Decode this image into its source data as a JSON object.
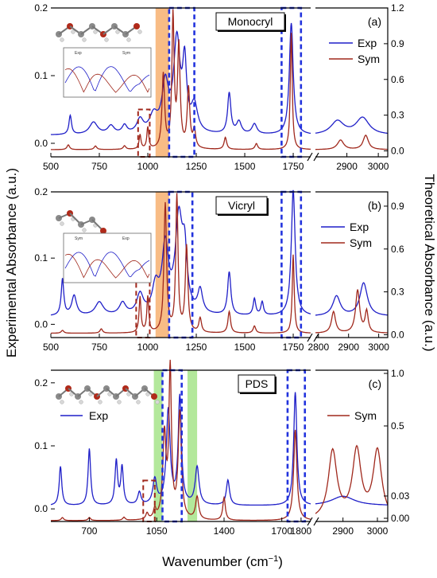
{
  "figure": {
    "y_left_label": "Experimental Absorbance (a.u.)",
    "y_right_label": "Theoretical Absorbance (a.u.)",
    "x_label_prefix": "Wavenumber (cm",
    "x_label_sup": "−1",
    "x_label_suffix": ")"
  },
  "chart_data": [
    {
      "type": "line",
      "panel_label": "(a)",
      "title": "Monocryl",
      "legend": [
        {
          "name": "Exp",
          "color": "#1f1fc8"
        },
        {
          "name": "Sym",
          "color": "#a0281c"
        }
      ],
      "x_left_ticks": [
        "500",
        "750",
        "1000",
        "1250",
        "1500",
        "1750"
      ],
      "x_right_ticks": [
        "2900",
        "3000"
      ],
      "y_left_ticks": [
        "0.0",
        "0.1",
        "0.2"
      ],
      "y_right_ticks": [
        "0.0",
        "0.3",
        "0.6",
        "0.9",
        "1.2"
      ],
      "x_left_range": [
        500,
        1840
      ],
      "x_right_range": [
        2800,
        3030
      ],
      "y_left_range": [
        -0.02,
        0.2
      ],
      "y_right_range": [
        -0.05,
        1.2
      ],
      "series": [
        {
          "name": "Exp",
          "color": "#1f1fc8",
          "axis": "left",
          "baseline": 0.012,
          "peaks": [
            [
              600,
              0.028,
              8
            ],
            [
              720,
              0.018,
              25
            ],
            [
              810,
              0.012,
              20
            ],
            [
              880,
              0.012,
              15
            ],
            [
              960,
              0.02,
              20
            ],
            [
              1030,
              0.025,
              25
            ],
            [
              1090,
              0.07,
              20
            ],
            [
              1150,
              0.135,
              20
            ],
            [
              1190,
              0.095,
              12
            ],
            [
              1240,
              0.04,
              20
            ],
            [
              1420,
              0.06,
              10
            ],
            [
              1470,
              0.018,
              15
            ],
            [
              1550,
              0.015,
              15
            ],
            [
              1740,
              0.165,
              12
            ],
            [
              2870,
              0.02,
              25
            ],
            [
              2950,
              0.025,
              25
            ]
          ]
        },
        {
          "name": "Sym",
          "color": "#a0281c",
          "axis": "right",
          "baseline": 0.01,
          "peaks": [
            [
              590,
              0.04,
              8
            ],
            [
              730,
              0.03,
              8
            ],
            [
              880,
              0.03,
              8
            ],
            [
              960,
              0.12,
              6
            ],
            [
              1000,
              0.18,
              6
            ],
            [
              1080,
              0.62,
              8
            ],
            [
              1130,
              1.1,
              7
            ],
            [
              1160,
              0.85,
              8
            ],
            [
              1210,
              0.5,
              8
            ],
            [
              1240,
              0.15,
              8
            ],
            [
              1400,
              0.1,
              8
            ],
            [
              1560,
              0.05,
              8
            ],
            [
              1740,
              0.98,
              6
            ],
            [
              2880,
              0.08,
              12
            ],
            [
              2960,
              0.12,
              10
            ]
          ]
        }
      ],
      "highlight_bands": [
        {
          "from": 1040,
          "to": 1110,
          "color": "#f6a65c"
        }
      ],
      "dashed_boxes": [
        {
          "from": 1110,
          "to": 1240,
          "color": "#2233dd",
          "full": true
        },
        {
          "from": 1690,
          "to": 1790,
          "color": "#2233dd",
          "full": true
        },
        {
          "from": 950,
          "to": 1010,
          "color": "#a0281c",
          "full": false,
          "top": 0.05
        }
      ],
      "inset_legend": [
        "Exp",
        "Sym"
      ]
    },
    {
      "type": "line",
      "panel_label": "(b)",
      "title": "Vicryl",
      "legend": [
        {
          "name": "Exp",
          "color": "#1f1fc8"
        },
        {
          "name": "Sym",
          "color": "#a0281c"
        }
      ],
      "x_left_ticks": [
        "500",
        "750",
        "1000",
        "1250",
        "1500",
        "1750"
      ],
      "x_right_ticks": [
        "2800",
        "2900",
        "3000"
      ],
      "y_left_ticks": [
        "0.0",
        "0.1",
        "0.2"
      ],
      "y_right_ticks": [
        "0.0",
        "0.3",
        "0.6",
        "0.9"
      ],
      "x_left_range": [
        500,
        1840
      ],
      "x_right_range": [
        2790,
        3030
      ],
      "y_left_range": [
        -0.02,
        0.2
      ],
      "y_right_range": [
        -0.02,
        1.0
      ],
      "series": [
        {
          "name": "Exp",
          "color": "#1f1fc8",
          "axis": "left",
          "baseline": 0.012,
          "peaks": [
            [
              560,
              0.055,
              8
            ],
            [
              620,
              0.03,
              15
            ],
            [
              750,
              0.02,
              25
            ],
            [
              870,
              0.018,
              20
            ],
            [
              960,
              0.03,
              20
            ],
            [
              1040,
              0.04,
              20
            ],
            [
              1090,
              0.1,
              20
            ],
            [
              1160,
              0.14,
              22
            ],
            [
              1190,
              0.08,
              15
            ],
            [
              1270,
              0.035,
              15
            ],
            [
              1420,
              0.065,
              10
            ],
            [
              1550,
              0.025,
              8
            ],
            [
              1590,
              0.02,
              8
            ],
            [
              1750,
              0.19,
              12
            ],
            [
              2860,
              0.03,
              15
            ],
            [
              2950,
              0.05,
              15
            ]
          ]
        },
        {
          "name": "Sym",
          "color": "#a0281c",
          "axis": "right",
          "baseline": 0.01,
          "peaks": [
            [
              560,
              0.02,
              8
            ],
            [
              760,
              0.03,
              8
            ],
            [
              960,
              0.25,
              6
            ],
            [
              1000,
              0.25,
              6
            ],
            [
              1090,
              0.9,
              8
            ],
            [
              1150,
              0.95,
              7
            ],
            [
              1200,
              0.6,
              8
            ],
            [
              1270,
              0.1,
              8
            ],
            [
              1420,
              0.15,
              8
            ],
            [
              1550,
              0.05,
              8
            ],
            [
              1750,
              0.55,
              6
            ],
            [
              2850,
              0.15,
              8
            ],
            [
              2930,
              0.3,
              8
            ],
            [
              2960,
              0.15,
              6
            ]
          ]
        }
      ],
      "highlight_bands": [
        {
          "from": 1040,
          "to": 1110,
          "color": "#f6a65c"
        }
      ],
      "dashed_boxes": [
        {
          "from": 1110,
          "to": 1230,
          "color": "#2233dd",
          "full": true
        },
        {
          "from": 1690,
          "to": 1790,
          "color": "#2233dd",
          "full": true
        },
        {
          "from": 940,
          "to": 1010,
          "color": "#a0281c",
          "full": false,
          "top": 0.08
        }
      ],
      "inset_legend": [
        "Sym",
        "Exp"
      ]
    },
    {
      "type": "line",
      "panel_label": "(c)",
      "title": "PDS",
      "legend": [
        {
          "name": "Exp",
          "color": "#1f1fc8"
        },
        {
          "name": "Sym",
          "color": "#a0281c"
        }
      ],
      "x_left_ticks": [
        "700",
        "1050",
        "1400",
        "1700",
        "1800"
      ],
      "x_right_ticks": [
        "2900",
        "3000"
      ],
      "y_left_ticks": [
        "0.0",
        "0.1",
        "0.2"
      ],
      "y_right_ticks": [
        "0.00",
        "0.03",
        "0.5",
        "1.0"
      ],
      "x_left_range": [
        500,
        1850
      ],
      "x_right_range": [
        2820,
        3030
      ],
      "y_left_range": [
        -0.02,
        0.22
      ],
      "y_right_range": [
        0.0,
        1.0
      ],
      "series": [
        {
          "name": "Exp",
          "color": "#1f1fc8",
          "axis": "left",
          "baseline": 0.005,
          "peaks": [
            [
              550,
              0.062,
              8
            ],
            [
              700,
              0.09,
              8
            ],
            [
              840,
              0.07,
              8
            ],
            [
              870,
              0.06,
              8
            ],
            [
              960,
              0.02,
              10
            ],
            [
              1040,
              0.04,
              12
            ],
            [
              1110,
              0.15,
              12
            ],
            [
              1170,
              0.17,
              10
            ],
            [
              1260,
              0.06,
              12
            ],
            [
              1420,
              0.04,
              10
            ],
            [
              1770,
              0.18,
              10
            ],
            [
              2900,
              0.015,
              40
            ]
          ]
        },
        {
          "name": "Sym",
          "color": "#a0281c",
          "axis": "right",
          "baseline": 0.005,
          "peaks": [
            [
              560,
              0.02,
              8
            ],
            [
              700,
              0.02,
              8
            ],
            [
              880,
              0.02,
              8
            ],
            [
              1000,
              0.04,
              8
            ],
            [
              1040,
              0.06,
              8
            ],
            [
              1090,
              0.55,
              10
            ],
            [
              1120,
              0.98,
              8
            ],
            [
              1170,
              0.7,
              10
            ],
            [
              1260,
              0.15,
              10
            ],
            [
              1400,
              0.15,
              8
            ],
            [
              1770,
              0.6,
              10
            ],
            [
              2870,
              0.45,
              15
            ],
            [
              2940,
              0.45,
              15
            ],
            [
              3000,
              0.45,
              15
            ]
          ]
        }
      ],
      "highlight_bands": [
        {
          "from": 1035,
          "to": 1080,
          "color": "#99e07a"
        },
        {
          "from": 1210,
          "to": 1260,
          "color": "#99e07a"
        }
      ],
      "dashed_boxes": [
        {
          "from": 1080,
          "to": 1180,
          "color": "#2233dd",
          "full": true
        },
        {
          "from": 1730,
          "to": 1820,
          "color": "#2233dd",
          "full": true
        },
        {
          "from": 980,
          "to": 1040,
          "color": "#a0281c",
          "full": false,
          "top": 0.045
        }
      ],
      "inset_legend": []
    }
  ]
}
